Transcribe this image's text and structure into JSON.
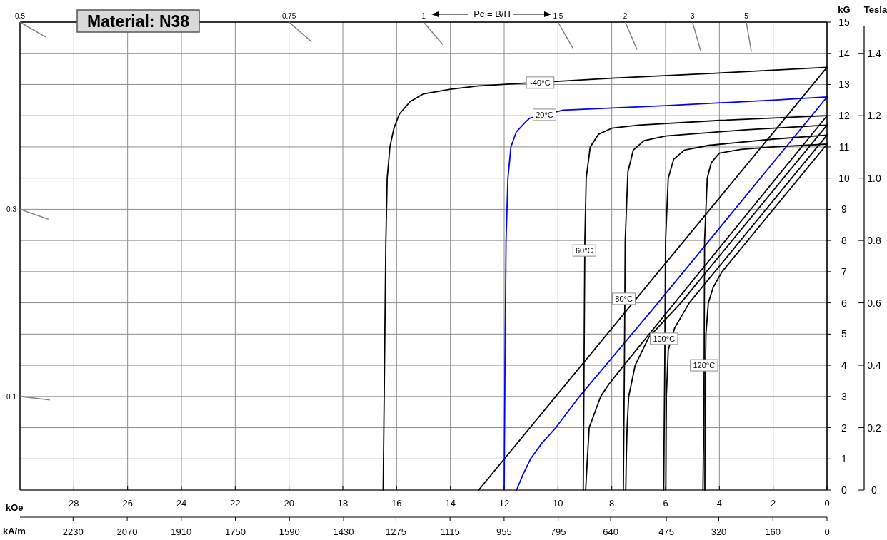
{
  "chart_data": {
    "type": "line",
    "title": "Material: N38",
    "xlabel": "kOe",
    "x2label": "kA/m",
    "ylabel": "kG",
    "y2label": "Tesla",
    "xlim": [
      30,
      0
    ],
    "xticks": [
      28,
      26,
      24,
      22,
      20,
      18,
      16,
      14,
      12,
      10,
      8,
      6,
      4,
      2,
      0
    ],
    "x2lim": [
      2387,
      0
    ],
    "x2ticks": [
      2230,
      2070,
      1910,
      1750,
      1590,
      1430,
      1275,
      1115,
      955,
      795,
      640,
      475,
      320,
      160,
      0
    ],
    "ylim": [
      0,
      15
    ],
    "yticks": [
      0,
      1,
      2,
      3,
      4,
      5,
      6,
      7,
      8,
      9,
      10,
      11,
      12,
      13,
      14,
      15
    ],
    "y2lim": [
      0,
      1.5
    ],
    "y2ticks": [
      {
        "value": 0,
        "label": "0"
      },
      0.2,
      0.4,
      0.6,
      0.8,
      {
        "value": 1,
        "label": "1.0"
      },
      1.2,
      1.4
    ],
    "grid": true,
    "marker": "none",
    "line_style": "solid",
    "series": [
      {
        "color": "#000000",
        "x": [
          0,
          4,
          8,
          11.5,
          13,
          14,
          15,
          15.5,
          15.9,
          16.1,
          16.25,
          16.35,
          16.4,
          16.45,
          16.5
        ],
        "values": [
          13.55,
          13.37,
          13.2,
          13.03,
          12.95,
          12.85,
          12.7,
          12.45,
          12.05,
          11.6,
          11.0,
          10,
          8,
          4,
          0
        ]
      },
      {
        "color": "#000000",
        "x": [
          0,
          12.95
        ],
        "values": [
          13.55,
          0
        ]
      },
      {
        "color": "#0000ff",
        "x": [
          0,
          2,
          6,
          9.8,
          11.05,
          11.2,
          11.55,
          11.75,
          11.86,
          11.93,
          11.97,
          12.0
        ],
        "values": [
          12.6,
          12.5,
          12.32,
          12.18,
          11.92,
          11.8,
          11.48,
          11.0,
          10,
          8,
          4,
          0
        ]
      },
      {
        "color": "#0000ff",
        "x": [
          0,
          6.28,
          9.2,
          10.08,
          10.6,
          11.02,
          11.3,
          11.54
        ],
        "values": [
          12.6,
          6,
          3,
          2,
          1.5,
          1,
          0.5,
          0
        ]
      },
      {
        "color": "#000000",
        "x": [
          0,
          4,
          7,
          8,
          8.5,
          8.8,
          8.95,
          9.0,
          9.03,
          9.06
        ],
        "values": [
          12.0,
          11.85,
          11.7,
          11.6,
          11.4,
          11.0,
          10,
          8,
          4,
          0
        ]
      },
      {
        "color": "#000000",
        "x": [
          0,
          7.55,
          8.1,
          8.41,
          8.84,
          8.94,
          8.97
        ],
        "values": [
          12.0,
          4,
          3.4,
          3,
          2,
          0.5,
          0
        ]
      },
      {
        "color": "#000000",
        "x": [
          0,
          3,
          6,
          6.8,
          7.2,
          7.4,
          7.5,
          7.53,
          7.57
        ],
        "values": [
          11.7,
          11.55,
          11.35,
          11.2,
          10.9,
          10.2,
          8,
          4,
          0
        ]
      },
      {
        "color": "#000000",
        "x": [
          0,
          5.43,
          6.62,
          7.13,
          7.37,
          7.43,
          7.46,
          7.48
        ],
        "values": [
          11.7,
          6,
          4.9,
          4,
          3,
          2,
          1,
          0
        ]
      },
      {
        "color": "#000000",
        "x": [
          0,
          2,
          4.4,
          5.3,
          5.7,
          5.9,
          6.0,
          6.03,
          6.07
        ],
        "values": [
          11.38,
          11.25,
          11.05,
          10.9,
          10.6,
          10,
          8,
          4,
          0
        ]
      },
      {
        "color": "#000000",
        "x": [
          0,
          5.12,
          5.66,
          5.9,
          5.97,
          5.99
        ],
        "values": [
          11.38,
          6,
          5.2,
          4.5,
          3,
          0
        ]
      },
      {
        "color": "#000000",
        "x": [
          0,
          2,
          3.2,
          4.0,
          4.3,
          4.45,
          4.55,
          4.57,
          4.61
        ],
        "values": [
          11.09,
          11.0,
          10.92,
          10.8,
          10.5,
          10,
          8,
          3,
          0
        ]
      },
      {
        "color": "#000000",
        "x": [
          0,
          3.9,
          4.23,
          4.41,
          4.5,
          4.53,
          4.54
        ],
        "values": [
          11.09,
          7,
          6.5,
          6,
          5,
          3,
          0
        ]
      }
    ],
    "annotations": [
      "Pc = B/H",
      "0.5",
      "0.3",
      "0.1",
      "0.75",
      "1",
      "1.5",
      "2",
      "3",
      "5",
      {
        "text": "-40°C",
        "x": 10.66,
        "y": 13.06
      },
      {
        "text": "20°C",
        "x": 10.5,
        "y": 12.03
      },
      {
        "text": "60°C",
        "x": 9.02,
        "y": 7.68
      },
      {
        "text": "80°C",
        "x": 7.55,
        "y": 6.13
      },
      {
        "text": "100°C",
        "x": 6.06,
        "y": 4.85
      },
      {
        "text": "120°C",
        "x": 4.57,
        "y": 4.0
      }
    ]
  }
}
